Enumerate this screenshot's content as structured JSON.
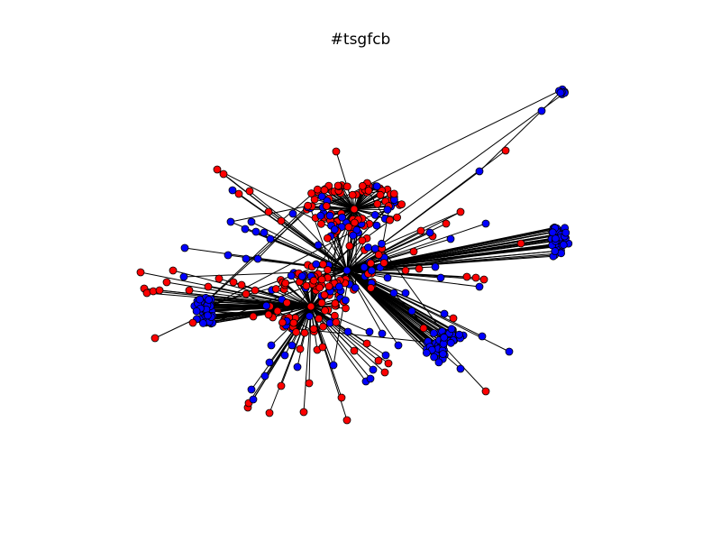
{
  "title": "#tsgfcb",
  "colors": {
    "background": "#ffffff",
    "edge": "#000000",
    "node_red": "#ff0000",
    "node_blue": "#0000ff",
    "node_outline": "#000000"
  },
  "node_types": [
    "red",
    "blue"
  ]
}
